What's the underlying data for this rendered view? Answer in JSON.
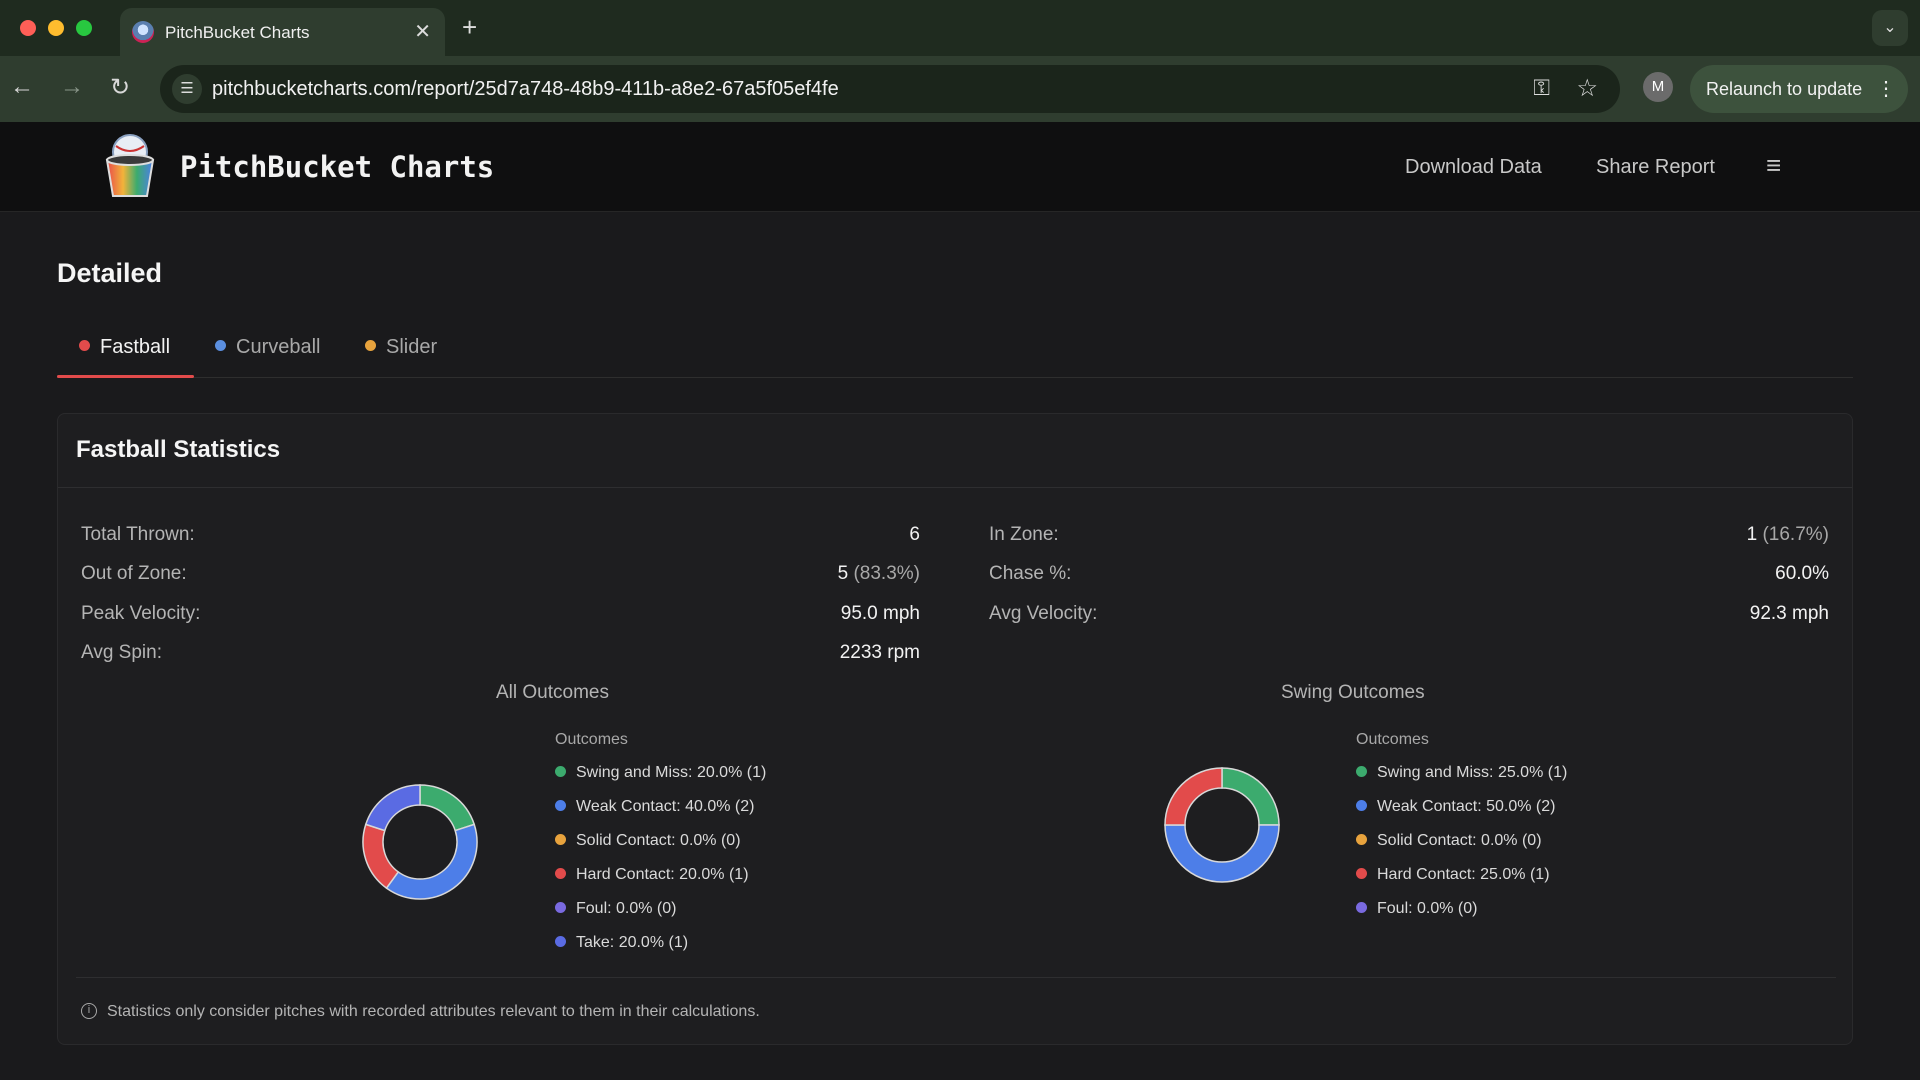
{
  "browser": {
    "tab_title": "PitchBucket Charts",
    "tab_close": "✕",
    "new_tab": "+",
    "url": "pitchbucketcharts.com/report/25d7a748-48b9-411b-a8e2-67a5f05ef4fe",
    "profile_initial": "M",
    "relaunch_label": "Relaunch to update"
  },
  "header": {
    "brand": "PitchBucket Charts",
    "download_label": "Download Data",
    "share_label": "Share Report"
  },
  "section_title": "Detailed",
  "pitch_tabs": [
    {
      "label": "Fastball",
      "color": "#e24b4b",
      "active": true
    },
    {
      "label": "Curveball",
      "color": "#5b8fe0",
      "active": false
    },
    {
      "label": "Slider",
      "color": "#e8a33d",
      "active": false
    }
  ],
  "card": {
    "title": "Fastball Statistics",
    "stats": {
      "total_thrown_label": "Total Thrown:",
      "total_thrown_value": "6",
      "in_zone_label": "In Zone:",
      "in_zone_value": "1",
      "in_zone_pct": "(16.7%)",
      "out_zone_label": "Out of Zone:",
      "out_zone_value": "5",
      "out_zone_pct": "(83.3%)",
      "chase_label": "Chase %:",
      "chase_value": "60.0%",
      "peak_velocity_label": "Peak Velocity:",
      "peak_velocity_value": "95.0 mph",
      "avg_velocity_label": "Avg Velocity:",
      "avg_velocity_value": "92.3 mph",
      "avg_spin_label": "Avg Spin:",
      "avg_spin_value": "2233 rpm"
    },
    "footnote": "Statistics only consider pitches with recorded attributes relevant to them in their calculations."
  },
  "chart_data": [
    {
      "type": "pie",
      "title": "All Outcomes",
      "legend_title": "Outcomes",
      "legend": "right",
      "slices": [
        {
          "label": "Swing and Miss: 20.0% (1)",
          "value": 20.0,
          "color": "#3cab6e"
        },
        {
          "label": "Weak Contact: 40.0% (2)",
          "value": 40.0,
          "color": "#4d7ee8"
        },
        {
          "label": "Solid Contact: 0.0% (0)",
          "value": 0.0,
          "color": "#e8a33d"
        },
        {
          "label": "Hard Contact: 20.0% (1)",
          "value": 20.0,
          "color": "#e24b4b"
        },
        {
          "label": "Foul: 0.0% (0)",
          "value": 0.0,
          "color": "#7a6ae0"
        },
        {
          "label": "Take: 20.0% (1)",
          "value": 20.0,
          "color": "#5a6be3"
        }
      ]
    },
    {
      "type": "pie",
      "title": "Swing Outcomes",
      "legend_title": "Outcomes",
      "legend": "right",
      "slices": [
        {
          "label": "Swing and Miss: 25.0% (1)",
          "value": 25.0,
          "color": "#3cab6e"
        },
        {
          "label": "Weak Contact: 50.0% (2)",
          "value": 50.0,
          "color": "#4d7ee8"
        },
        {
          "label": "Solid Contact: 0.0% (0)",
          "value": 0.0,
          "color": "#e8a33d"
        },
        {
          "label": "Hard Contact: 25.0% (1)",
          "value": 25.0,
          "color": "#e24b4b"
        },
        {
          "label": "Foul: 0.0% (0)",
          "value": 0.0,
          "color": "#7a6ae0"
        }
      ]
    }
  ]
}
